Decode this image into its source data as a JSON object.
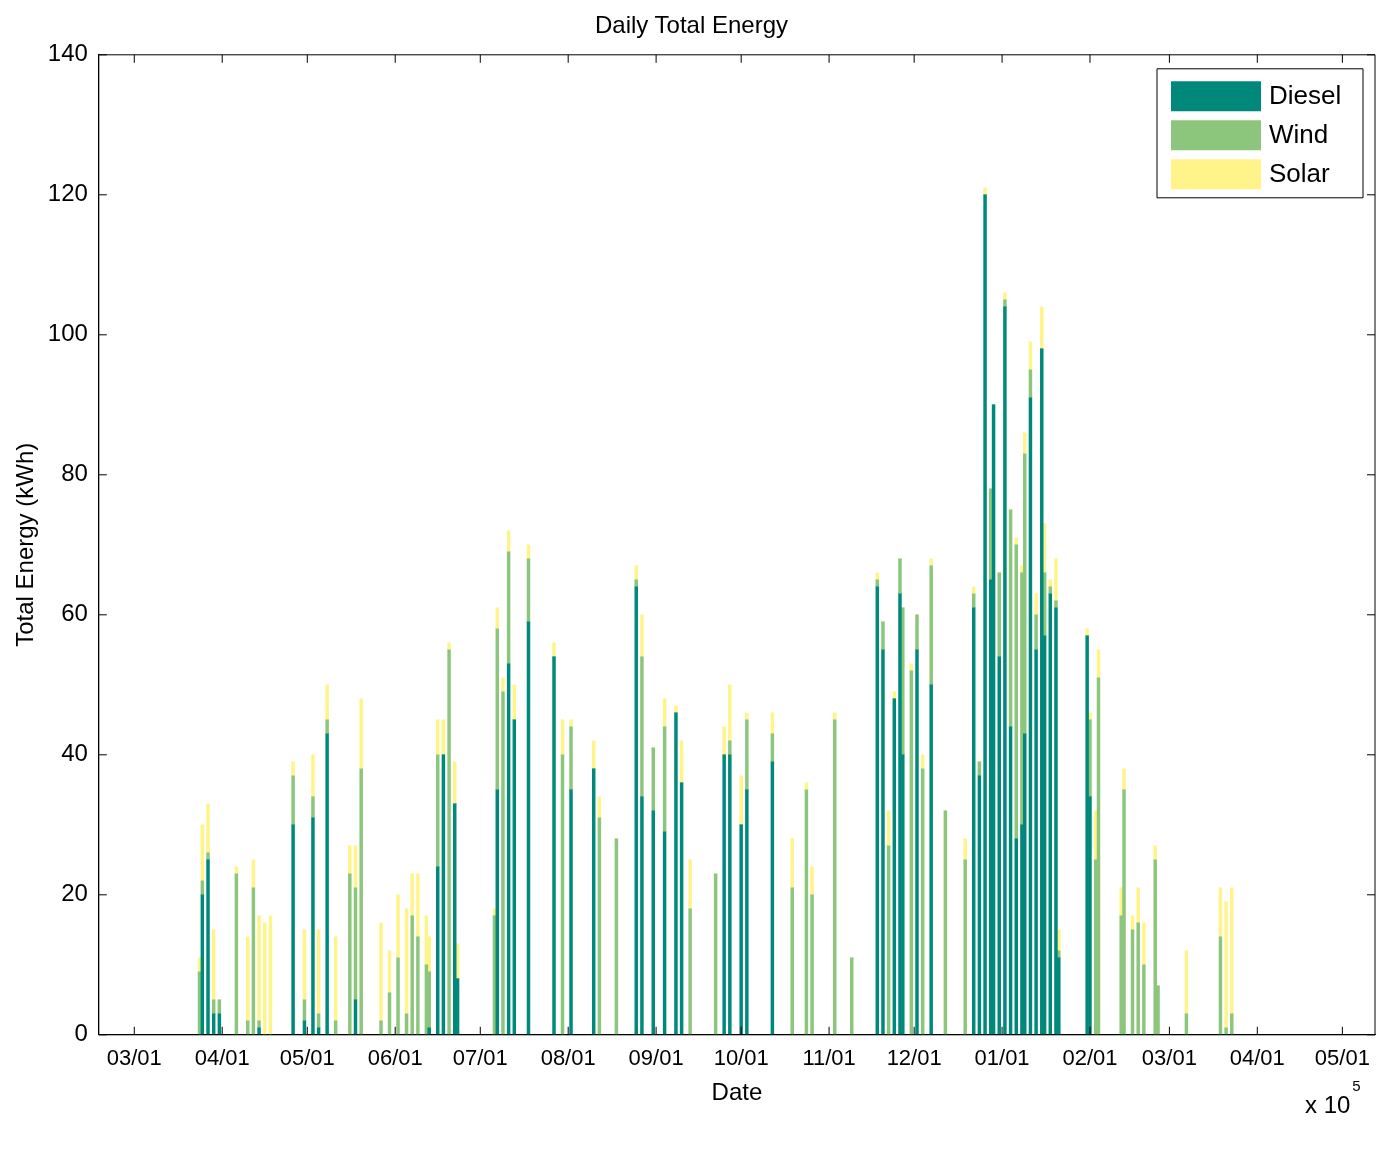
{
  "chart_data": {
    "type": "bar",
    "stacked": true,
    "title": "Daily Total Energy",
    "xlabel": "Date",
    "ylabel": "Total Energy (kWh)",
    "annotations": [
      "x 10$^{5}$"
    ],
    "legend": "top right",
    "categories": [
      null,
      null,
      null,
      null,
      null,
      null,
      null,
      null,
      null,
      null,
      null,
      null,
      "03/01",
      null,
      null,
      null,
      null,
      null,
      null,
      null,
      null,
      null,
      null,
      null,
      null,
      null,
      null,
      null,
      null,
      null,
      null,
      null,
      null,
      null,
      null,
      null,
      null,
      null,
      null,
      null,
      null,
      null,
      null,
      "04/01",
      null,
      null,
      null,
      null,
      null,
      null,
      null,
      null,
      null,
      null,
      null,
      null,
      null,
      null,
      null,
      null,
      null,
      null,
      null,
      null,
      null,
      null,
      null,
      null,
      null,
      null,
      null,
      null,
      null,
      "05/01",
      null,
      null,
      null,
      null,
      null,
      null,
      null,
      null,
      null,
      null,
      null,
      null,
      null,
      null,
      null,
      null,
      null,
      null,
      null,
      null,
      null,
      null,
      null,
      null,
      null,
      null,
      null,
      null,
      null,
      null,
      "06/01",
      null,
      null,
      null,
      null,
      null,
      null,
      null,
      null,
      null,
      null,
      null,
      null,
      null,
      null,
      null,
      null,
      null,
      null,
      null,
      null,
      null,
      null,
      null,
      null,
      null,
      null,
      null,
      null,
      null,
      "07/01",
      null,
      null,
      null,
      null,
      null,
      null,
      null,
      null,
      null,
      null,
      null,
      null,
      null,
      null,
      null,
      null,
      null,
      null,
      null,
      null,
      null,
      null,
      null,
      null,
      null,
      null,
      null,
      null,
      null,
      null,
      "08/01",
      null,
      null,
      null,
      null,
      null,
      null,
      null,
      null,
      null,
      null,
      null,
      null,
      null,
      null,
      null,
      null,
      null,
      null,
      null,
      null,
      null,
      null,
      null,
      null,
      null,
      null,
      null,
      null,
      null,
      null,
      "09/01",
      null,
      null,
      null,
      null,
      null,
      null,
      null,
      null,
      null,
      null,
      null,
      null,
      null,
      null,
      null,
      null,
      null,
      null,
      null,
      null,
      null,
      null,
      null,
      null,
      null,
      null,
      null,
      null,
      null,
      "10/01",
      null,
      null,
      null,
      null,
      null,
      null,
      null,
      null,
      null,
      null,
      null,
      null,
      null,
      null,
      null,
      null,
      null,
      null,
      null,
      null,
      null,
      null,
      null,
      null,
      null,
      null,
      null,
      null,
      null,
      null,
      "11/01",
      null,
      null,
      null,
      null,
      null,
      null,
      null,
      null,
      null,
      null,
      null,
      null,
      null,
      null,
      null,
      null,
      null,
      null,
      null,
      null,
      null,
      null,
      null,
      null,
      null,
      null,
      null,
      null,
      null,
      "12/01",
      null,
      null,
      null,
      null,
      null,
      null,
      null,
      null,
      null,
      null,
      null,
      null,
      null,
      null,
      null,
      null,
      null,
      null,
      null,
      null,
      null,
      null,
      null,
      null,
      null,
      null,
      null,
      null,
      null,
      null,
      "01/01",
      null,
      null,
      null,
      null,
      null,
      null,
      null,
      null,
      null,
      null,
      null,
      null,
      null,
      null,
      null,
      null,
      null,
      null,
      null,
      null,
      null,
      null,
      null,
      null,
      null,
      null,
      null,
      null,
      null,
      null,
      "02/01",
      null,
      null,
      null,
      null,
      null,
      null,
      null,
      null,
      null,
      null,
      null,
      null,
      null,
      null,
      null,
      null,
      null,
      null,
      null,
      null,
      null,
      null,
      null,
      null,
      null,
      null,
      null,
      "03/01",
      null,
      null,
      null,
      null,
      null,
      null,
      null,
      null,
      null,
      null,
      null,
      null,
      null,
      null,
      null,
      null,
      null,
      null,
      null,
      null,
      null,
      null,
      null,
      null,
      null,
      null,
      null,
      null,
      null,
      null,
      "04/01",
      null,
      null,
      null,
      null,
      null,
      null,
      null,
      null,
      null,
      null,
      null,
      null,
      null,
      null,
      null,
      null,
      null,
      null,
      null,
      null,
      null,
      null,
      null,
      null,
      null,
      null,
      null,
      null,
      null,
      "05/01",
      null,
      null,
      null,
      null,
      null,
      null,
      null,
      null,
      null,
      null,
      null
    ],
    "series": [
      {
        "name": "Diesel",
        "color": "#00897a",
        "values": [
          null,
          null,
          null,
          null,
          null,
          null,
          null,
          null,
          null,
          null,
          null,
          null,
          null,
          null,
          null,
          null,
          null,
          null,
          null,
          null,
          null,
          null,
          null,
          null,
          null,
          null,
          null,
          null,
          null,
          null,
          null,
          null,
          null,
          null,
          null,
          0,
          20,
          null,
          25,
          null,
          3,
          null,
          3,
          null,
          null,
          null,
          null,
          null,
          0,
          null,
          null,
          null,
          0,
          null,
          0,
          null,
          1,
          null,
          0,
          null,
          0,
          null,
          null,
          null,
          null,
          null,
          null,
          null,
          30,
          null,
          null,
          null,
          2,
          null,
          null,
          31,
          null,
          1,
          null,
          null,
          43,
          null,
          null,
          0,
          null,
          null,
          null,
          null,
          0,
          null,
          5,
          null,
          0,
          null,
          null,
          null,
          null,
          null,
          null,
          0,
          null,
          null,
          0,
          null,
          null,
          0,
          null,
          null,
          0,
          null,
          0,
          null,
          0,
          null,
          null,
          0,
          1,
          null,
          null,
          24,
          null,
          40,
          null,
          0,
          null,
          33,
          8,
          null,
          null,
          null,
          null,
          null,
          null,
          null,
          null,
          null,
          null,
          null,
          null,
          0,
          35,
          null,
          0,
          null,
          53,
          null,
          45,
          null,
          null,
          null,
          null,
          59,
          null,
          null,
          null,
          null,
          null,
          null,
          null,
          null,
          54,
          null,
          null,
          0,
          null,
          null,
          35,
          null,
          null,
          null,
          null,
          null,
          null,
          null,
          38,
          null,
          0,
          null,
          null,
          null,
          null,
          null,
          0,
          null,
          null,
          null,
          null,
          null,
          null,
          64,
          null,
          34,
          null,
          null,
          null,
          32,
          null,
          null,
          null,
          29,
          null,
          null,
          null,
          46,
          null,
          36,
          null,
          null,
          0,
          null,
          null,
          null,
          null,
          null,
          null,
          null,
          null,
          0,
          null,
          null,
          40,
          null,
          40,
          null,
          null,
          null,
          30,
          null,
          35,
          null,
          null,
          null,
          null,
          null,
          null,
          null,
          null,
          39,
          null,
          null,
          null,
          null,
          null,
          null,
          0,
          null,
          null,
          null,
          null,
          0,
          null,
          0,
          null,
          null,
          null,
          null,
          null,
          null,
          null,
          0,
          null,
          null,
          null,
          null,
          null,
          0,
          null,
          null,
          null,
          null,
          null,
          null,
          null,
          null,
          64,
          null,
          55,
          null,
          0,
          null,
          48,
          null,
          63,
          40,
          null,
          null,
          0,
          null,
          55,
          null,
          0,
          null,
          null,
          50,
          null,
          null,
          null,
          null,
          0,
          null,
          null,
          null,
          null,
          null,
          null,
          0,
          null,
          null,
          61,
          null,
          37,
          null,
          120,
          null,
          65,
          90,
          null,
          54,
          null,
          104,
          null,
          44,
          null,
          28,
          null,
          30,
          43,
          null,
          91,
          null,
          55,
          null,
          98,
          57,
          null,
          63,
          null,
          61,
          11,
          null,
          null,
          null,
          null,
          null,
          null,
          null,
          null,
          null,
          57,
          34,
          null,
          0,
          0,
          null,
          null,
          null,
          null,
          null,
          null,
          null,
          0,
          0,
          null,
          null,
          0,
          null,
          0,
          null,
          0,
          null,
          null,
          null,
          0,
          0,
          null,
          null,
          null,
          null,
          null,
          null,
          null,
          null,
          null,
          0,
          null,
          null,
          null,
          null,
          null,
          null,
          null,
          null,
          null,
          null,
          null,
          0,
          null,
          0,
          null,
          0,
          null,
          null,
          null,
          null,
          null,
          null,
          null,
          null,
          null,
          null,
          null,
          null,
          null,
          null,
          null,
          null,
          null,
          null,
          null,
          null,
          null,
          null,
          null,
          null,
          null,
          null,
          null,
          null,
          null,
          null,
          null,
          null,
          null,
          null,
          null,
          null,
          null,
          null,
          null,
          null,
          null,
          null,
          null,
          null,
          null,
          null,
          null,
          null,
          null,
          null
        ]
      },
      {
        "name": "Wind",
        "color": "#8cc67c",
        "values": [
          null,
          null,
          null,
          null,
          null,
          null,
          null,
          null,
          null,
          null,
          null,
          null,
          null,
          null,
          null,
          null,
          null,
          null,
          null,
          null,
          null,
          null,
          null,
          null,
          null,
          null,
          null,
          null,
          null,
          null,
          null,
          null,
          null,
          null,
          null,
          9,
          2,
          null,
          1,
          null,
          2,
          null,
          2,
          null,
          null,
          null,
          null,
          null,
          23,
          null,
          null,
          null,
          2,
          null,
          21,
          null,
          1,
          null,
          0,
          null,
          0,
          null,
          null,
          null,
          null,
          null,
          null,
          null,
          7,
          null,
          null,
          null,
          3,
          null,
          null,
          3,
          null,
          2,
          null,
          null,
          2,
          null,
          null,
          2,
          null,
          null,
          null,
          null,
          23,
          null,
          16,
          null,
          38,
          null,
          null,
          null,
          null,
          null,
          null,
          2,
          null,
          null,
          6,
          null,
          null,
          11,
          null,
          null,
          3,
          null,
          17,
          null,
          14,
          null,
          null,
          10,
          8,
          null,
          null,
          16,
          null,
          0,
          null,
          55,
          null,
          0,
          0,
          null,
          null,
          null,
          null,
          null,
          null,
          null,
          null,
          null,
          null,
          null,
          null,
          17,
          23,
          null,
          49,
          null,
          16,
          null,
          0,
          null,
          null,
          null,
          null,
          9,
          null,
          null,
          null,
          null,
          null,
          null,
          null,
          null,
          0,
          null,
          null,
          40,
          null,
          null,
          9,
          null,
          null,
          null,
          null,
          null,
          null,
          null,
          0,
          null,
          31,
          null,
          null,
          null,
          null,
          null,
          28,
          null,
          null,
          null,
          null,
          null,
          null,
          1,
          null,
          20,
          null,
          null,
          null,
          9,
          null,
          null,
          null,
          15,
          null,
          null,
          null,
          0,
          null,
          0,
          null,
          null,
          18,
          null,
          null,
          null,
          null,
          null,
          null,
          null,
          null,
          23,
          null,
          null,
          0,
          null,
          2,
          null,
          null,
          null,
          0,
          null,
          10,
          null,
          null,
          null,
          null,
          null,
          null,
          null,
          null,
          4,
          null,
          null,
          null,
          null,
          null,
          null,
          21,
          null,
          null,
          null,
          null,
          35,
          null,
          20,
          null,
          null,
          null,
          null,
          null,
          null,
          null,
          45,
          null,
          null,
          null,
          null,
          null,
          11,
          null,
          null,
          null,
          null,
          null,
          null,
          null,
          null,
          1,
          null,
          4,
          null,
          27,
          null,
          0,
          null,
          5,
          21,
          null,
          null,
          52,
          null,
          5,
          null,
          38,
          null,
          null,
          17,
          null,
          null,
          null,
          null,
          32,
          null,
          null,
          null,
          null,
          null,
          null,
          25,
          null,
          null,
          2,
          null,
          2,
          null,
          0,
          null,
          13,
          0,
          null,
          12,
          null,
          1,
          null,
          31,
          null,
          42,
          null,
          36,
          40,
          null,
          4,
          null,
          5,
          null,
          0,
          9,
          null,
          1,
          null,
          1,
          1,
          null,
          null,
          null,
          null,
          null,
          null,
          null,
          null,
          null,
          0,
          11,
          null,
          25,
          51,
          null,
          null,
          null,
          null,
          null,
          null,
          null,
          17,
          35,
          null,
          null,
          15,
          null,
          16,
          null,
          10,
          null,
          null,
          null,
          25,
          7,
          null,
          null,
          null,
          null,
          null,
          null,
          null,
          null,
          null,
          3,
          null,
          null,
          null,
          null,
          null,
          null,
          null,
          null,
          null,
          null,
          null,
          14,
          null,
          1,
          null,
          3,
          null,
          null,
          null,
          null,
          null,
          null,
          null,
          null,
          null,
          null,
          null,
          null,
          null,
          null,
          null,
          null,
          null,
          null,
          null,
          null,
          null,
          null,
          null,
          null,
          null,
          null,
          null,
          null,
          null,
          null,
          null,
          null,
          null,
          null,
          null,
          null,
          null,
          null,
          null,
          null,
          null,
          null,
          null,
          null,
          null,
          null,
          null,
          null,
          null,
          null
        ]
      },
      {
        "name": "Solar",
        "color": "#fff48a",
        "values": [
          null,
          null,
          null,
          null,
          null,
          null,
          null,
          null,
          null,
          null,
          null,
          null,
          null,
          null,
          null,
          null,
          null,
          null,
          null,
          null,
          null,
          null,
          null,
          null,
          null,
          null,
          null,
          null,
          null,
          null,
          null,
          null,
          null,
          null,
          null,
          2,
          8,
          null,
          7,
          null,
          10,
          null,
          0,
          null,
          null,
          null,
          null,
          null,
          1,
          null,
          null,
          null,
          12,
          null,
          4,
          null,
          15,
          null,
          16,
          null,
          17,
          null,
          null,
          null,
          null,
          null,
          null,
          null,
          2,
          null,
          null,
          null,
          10,
          null,
          null,
          6,
          null,
          12,
          null,
          null,
          5,
          null,
          null,
          12,
          null,
          null,
          null,
          null,
          4,
          null,
          6,
          null,
          10,
          null,
          null,
          null,
          null,
          null,
          null,
          14,
          null,
          null,
          6,
          null,
          null,
          9,
          null,
          null,
          15,
          null,
          6,
          null,
          9,
          null,
          null,
          7,
          5,
          null,
          null,
          5,
          null,
          5,
          null,
          1,
          null,
          6,
          5,
          null,
          null,
          null,
          null,
          null,
          null,
          null,
          null,
          null,
          null,
          null,
          null,
          1,
          3,
          null,
          2,
          null,
          3,
          null,
          5,
          null,
          null,
          null,
          null,
          2,
          null,
          null,
          null,
          null,
          null,
          null,
          null,
          null,
          2,
          null,
          null,
          5,
          null,
          null,
          1,
          null,
          null,
          null,
          null,
          null,
          null,
          null,
          4,
          null,
          3,
          null,
          null,
          null,
          null,
          null,
          0,
          null,
          null,
          null,
          null,
          null,
          null,
          2,
          null,
          6,
          null,
          null,
          null,
          0,
          null,
          null,
          null,
          4,
          null,
          null,
          null,
          1,
          null,
          6,
          null,
          null,
          7,
          null,
          null,
          null,
          null,
          null,
          null,
          null,
          null,
          0,
          null,
          null,
          4,
          null,
          8,
          null,
          null,
          null,
          7,
          null,
          1,
          null,
          null,
          null,
          null,
          null,
          null,
          null,
          null,
          3,
          null,
          null,
          null,
          null,
          null,
          null,
          7,
          null,
          null,
          null,
          null,
          1,
          null,
          4,
          null,
          null,
          null,
          null,
          null,
          null,
          null,
          1,
          null,
          null,
          null,
          null,
          null,
          0,
          null,
          null,
          null,
          null,
          null,
          null,
          null,
          null,
          1,
          null,
          0,
          null,
          5,
          null,
          1,
          null,
          0,
          0,
          null,
          null,
          1,
          null,
          0,
          null,
          2,
          null,
          null,
          1,
          null,
          null,
          null,
          null,
          0,
          null,
          null,
          null,
          null,
          null,
          null,
          3,
          null,
          null,
          1,
          null,
          0,
          null,
          1,
          null,
          0,
          0,
          null,
          0,
          null,
          1,
          null,
          0,
          null,
          1,
          null,
          1,
          3,
          null,
          4,
          null,
          3,
          null,
          6,
          7,
          null,
          1,
          null,
          6,
          3,
          null,
          null,
          null,
          null,
          null,
          null,
          null,
          null,
          null,
          1,
          1,
          null,
          7,
          4,
          null,
          null,
          null,
          null,
          null,
          null,
          null,
          4,
          3,
          null,
          null,
          2,
          null,
          5,
          null,
          6,
          null,
          null,
          null,
          2,
          0,
          null,
          null,
          null,
          null,
          null,
          null,
          null,
          null,
          null,
          9,
          null,
          null,
          null,
          null,
          null,
          null,
          null,
          null,
          null,
          null,
          null,
          7,
          null,
          18,
          null,
          18,
          null,
          null,
          null,
          null,
          null,
          null,
          null,
          null,
          null,
          null,
          null,
          null,
          null,
          null,
          null,
          null,
          null,
          null,
          null,
          null,
          null,
          null,
          null,
          null,
          null,
          null,
          null,
          null,
          null,
          null,
          null,
          null,
          null,
          null,
          null,
          null,
          null,
          null,
          null,
          null,
          null,
          null,
          null,
          null,
          null,
          null,
          null,
          null,
          null,
          null
        ]
      }
    ],
    "ylim": [
      0,
      140
    ],
    "yticks": [
      0,
      20,
      40,
      60,
      80,
      100,
      120,
      140
    ]
  }
}
